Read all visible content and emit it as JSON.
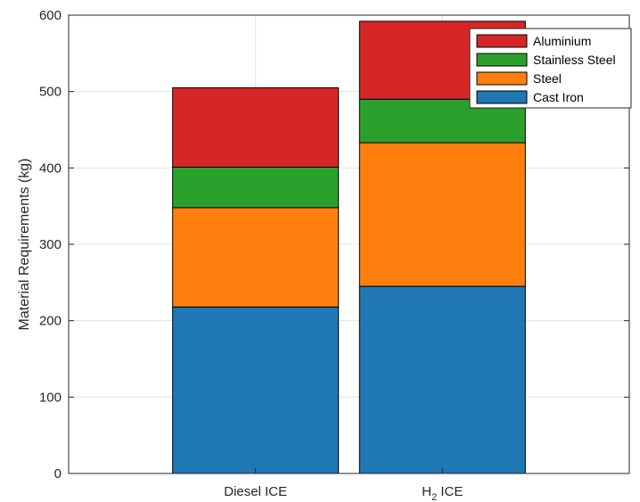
{
  "chart_data": {
    "type": "bar",
    "stacked": true,
    "categories": [
      {
        "label": "Diesel ICE",
        "base": "Diesel ICE",
        "sub": "",
        "rest": ""
      },
      {
        "label": "H2 ICE",
        "base": "H",
        "sub": "2",
        "rest": " ICE"
      }
    ],
    "series": [
      {
        "name": "Cast Iron",
        "color": "#1f77b4",
        "values": [
          218,
          245
        ]
      },
      {
        "name": "Steel",
        "color": "#ff7f0e",
        "values": [
          130,
          188
        ]
      },
      {
        "name": "Stainless Steel",
        "color": "#2ca02c",
        "values": [
          53,
          57
        ]
      },
      {
        "name": "Aluminium",
        "color": "#d62728",
        "values": [
          104,
          102
        ]
      }
    ],
    "ylabel": "Material Requirements (kg)",
    "ylim": [
      0,
      600
    ],
    "yticks": [
      0,
      100,
      200,
      300,
      400,
      500,
      600
    ],
    "grid": true,
    "legend": {
      "placement": "top-right",
      "order": [
        "Aluminium",
        "Stainless Steel",
        "Steel",
        "Cast Iron"
      ]
    }
  }
}
